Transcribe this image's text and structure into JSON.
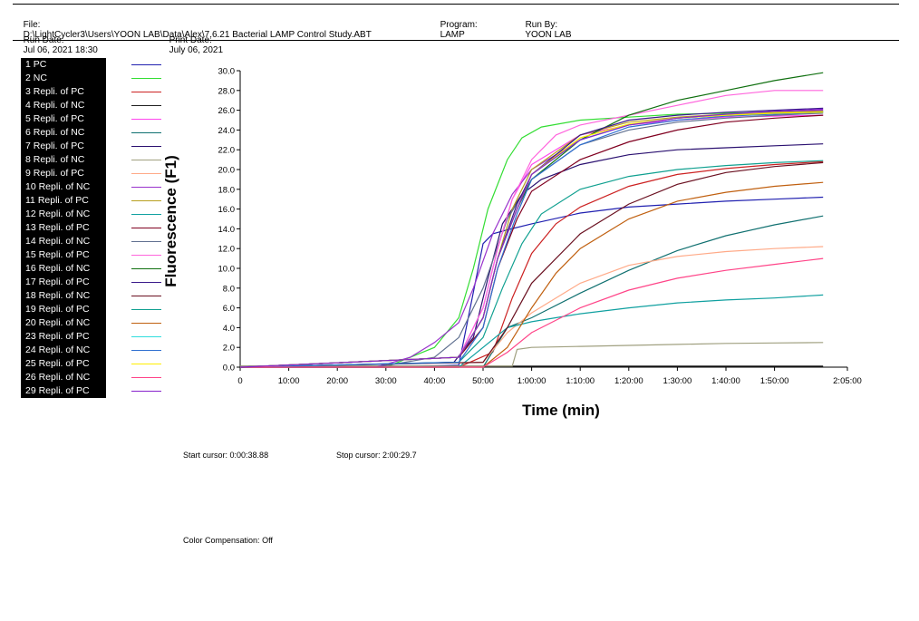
{
  "header": {
    "file_label": "File:",
    "file_path": "D:\\LightCycler3\\Users\\YOON LAB\\Data\\Alex\\7.6.21 Bacterial LAMP Control Study.ABT",
    "program_label": "Program:",
    "program": "LAMP",
    "run_by_label": "Run By:",
    "run_by": "YOON LAB",
    "run_date_label": "Run Date:",
    "run_date": "Jul 06, 2021 18:30",
    "print_date_label": "Print Date:",
    "print_date": "July 06, 2021"
  },
  "footer": {
    "start_cursor_label": "Start cursor:",
    "start_cursor": "0:00:38.88",
    "stop_cursor_label": "Stop cursor:",
    "stop_cursor": "2:00:29.7",
    "color_comp_label": "Color Compensation:",
    "color_comp": "Off"
  },
  "chart_data": {
    "type": "line",
    "xlabel": "Time (min)",
    "ylabel": "Fluorescence (F1)",
    "xlim": [
      0,
      125
    ],
    "ylim": [
      0,
      30
    ],
    "x_ticks": [
      0,
      10,
      20,
      30,
      40,
      50,
      60,
      70,
      80,
      90,
      100,
      110,
      125
    ],
    "x_tick_labels": [
      "0",
      "10:00",
      "20:00",
      "30:00",
      "40:00",
      "50:00",
      "1:00:00",
      "1:10:00",
      "1:20:00",
      "1:30:00",
      "1:40:00",
      "1:50:00",
      "2:05:00"
    ],
    "y_ticks": [
      0,
      2,
      4,
      6,
      8,
      10,
      12,
      14,
      16,
      18,
      20,
      22,
      24,
      26,
      28,
      30
    ],
    "y_tick_labels": [
      "0.0",
      "2.0",
      "4.0",
      "6.0",
      "8.0",
      "10.0",
      "12.0",
      "14.0",
      "16.0",
      "18.0",
      "20.0",
      "22.0",
      "24.0",
      "26.0",
      "28.0",
      "30.0"
    ],
    "grid": false,
    "legend_position": "left",
    "series": [
      {
        "name": "1 PC",
        "color": "#2020b0",
        "x": [
          0,
          30,
          45,
          50,
          52,
          55,
          60,
          70,
          80,
          90,
          100,
          110,
          120
        ],
        "y": [
          0,
          0,
          0.2,
          12.5,
          13.5,
          13.9,
          14.5,
          15.6,
          16.2,
          16.5,
          16.8,
          17.0,
          17.2
        ]
      },
      {
        "name": "2 NC",
        "color": "#33dd33",
        "x": [
          0,
          30,
          40,
          45,
          48,
          51,
          55,
          58,
          62,
          70,
          80,
          90,
          100,
          110,
          120
        ],
        "y": [
          0,
          0,
          2.0,
          5.0,
          10.0,
          16.0,
          21.0,
          23.2,
          24.3,
          25.0,
          25.3,
          25.6,
          25.7,
          25.8,
          25.9
        ]
      },
      {
        "name": "3 Repli. of PC",
        "color": "#cc2222",
        "x": [
          0,
          45,
          52,
          56,
          60,
          65,
          70,
          80,
          90,
          100,
          110,
          120
        ],
        "y": [
          0,
          0,
          1.5,
          7.0,
          11.5,
          14.5,
          16.2,
          18.3,
          19.5,
          20.1,
          20.5,
          20.8
        ]
      },
      {
        "name": "4 Repli. of NC",
        "color": "#202020",
        "x": [
          0,
          120
        ],
        "y": [
          0.1,
          0.1
        ]
      },
      {
        "name": "5 Repli. of PC",
        "color": "#ff44ee",
        "x": [
          0,
          45,
          50,
          53,
          56,
          60,
          70,
          80,
          90,
          100,
          110,
          120
        ],
        "y": [
          0,
          1,
          6,
          12,
          17,
          20.5,
          23.5,
          24.5,
          25.0,
          25.3,
          25.4,
          25.5
        ]
      },
      {
        "name": "6 Repli. of NC",
        "color": "#107070",
        "x": [
          0,
          50,
          55,
          60,
          70,
          80,
          90,
          100,
          110,
          120
        ],
        "y": [
          0,
          0,
          4.0,
          5.0,
          7.5,
          9.8,
          11.8,
          13.3,
          14.4,
          15.3
        ]
      },
      {
        "name": "7 Repli. of PC",
        "color": "#2a1070",
        "x": [
          0,
          44,
          48,
          51,
          54,
          58,
          62,
          70,
          80,
          90,
          100,
          110,
          120
        ],
        "y": [
          0,
          0.5,
          3,
          9,
          14.5,
          17.5,
          19.0,
          20.5,
          21.5,
          22.0,
          22.2,
          22.4,
          22.6
        ]
      },
      {
        "name": "8 Repli. of NC",
        "color": "#a0a080",
        "x": [
          0,
          56,
          57,
          60,
          70,
          80,
          90,
          100,
          110,
          120
        ],
        "y": [
          0.1,
          0.1,
          1.8,
          2.0,
          2.1,
          2.2,
          2.3,
          2.4,
          2.45,
          2.5
        ]
      },
      {
        "name": "9 Repli. of PC",
        "color": "#ffaa88",
        "x": [
          0,
          50,
          55,
          60,
          70,
          80,
          90,
          100,
          110,
          120
        ],
        "y": [
          0,
          0.5,
          3.5,
          5.5,
          8.5,
          10.3,
          11.2,
          11.7,
          12.0,
          12.2
        ]
      },
      {
        "name": "10 Repli. of NC",
        "color": "#9933cc",
        "x": [
          0,
          28,
          35,
          40,
          45,
          48,
          52,
          56,
          60,
          70,
          80,
          90,
          100,
          110,
          120
        ],
        "y": [
          0,
          0,
          1.0,
          2.5,
          4.5,
          8.0,
          13.5,
          17.5,
          20.0,
          23.0,
          24.5,
          25.2,
          25.5,
          25.8,
          26.0
        ]
      },
      {
        "name": "11 Repli. of PC",
        "color": "#b8a020",
        "x": [
          0,
          45,
          50,
          53,
          56,
          60,
          70,
          80,
          90,
          100,
          110,
          120
        ],
        "y": [
          0,
          1,
          5,
          11,
          16,
          20,
          23.5,
          24.8,
          25.3,
          25.6,
          25.8,
          25.9
        ]
      },
      {
        "name": "12 Repli. of NC",
        "color": "#10a0a0",
        "x": [
          0,
          45,
          55,
          60,
          70,
          80,
          90,
          100,
          110,
          120
        ],
        "y": [
          0,
          0,
          4.0,
          4.6,
          5.4,
          6.0,
          6.5,
          6.8,
          7.0,
          7.3
        ]
      },
      {
        "name": "13 Repli. of PC",
        "color": "#800020",
        "x": [
          0,
          45,
          50,
          53,
          57,
          60,
          70,
          80,
          90,
          100,
          110,
          120
        ],
        "y": [
          0,
          1,
          4,
          10,
          15,
          17.8,
          21.0,
          22.8,
          24.0,
          24.8,
          25.2,
          25.5
        ]
      },
      {
        "name": "14 Repli. of NC",
        "color": "#607090",
        "x": [
          0,
          28,
          40,
          45,
          50,
          55,
          60,
          70,
          80,
          90,
          100,
          110,
          120
        ],
        "y": [
          0,
          0,
          1,
          3,
          8,
          15,
          19,
          22.5,
          24,
          24.8,
          25.2,
          25.5,
          25.7
        ]
      },
      {
        "name": "15 Repli. of PC",
        "color": "#ff66dd",
        "x": [
          0,
          45,
          50,
          53,
          56,
          60,
          65,
          70,
          80,
          90,
          100,
          110,
          120
        ],
        "y": [
          0,
          1,
          6,
          12,
          17,
          21,
          23.5,
          24.5,
          25.5,
          26.5,
          27.5,
          28.0,
          28.0
        ]
      },
      {
        "name": "16 Repli. of NC",
        "color": "#107010",
        "x": [
          0,
          45,
          50,
          53,
          57,
          60,
          70,
          80,
          90,
          100,
          110,
          120
        ],
        "y": [
          0,
          1,
          5,
          11,
          16,
          19,
          23,
          25.5,
          27.0,
          28.0,
          29.0,
          29.8
        ]
      },
      {
        "name": "17 Repli. of PC",
        "color": "#3a1a8a",
        "x": [
          0,
          45,
          50,
          53,
          57,
          60,
          70,
          80,
          90,
          100,
          110,
          120
        ],
        "y": [
          0,
          1,
          5,
          11,
          16.5,
          19.5,
          23.5,
          25.0,
          25.5,
          25.8,
          26.0,
          26.2
        ]
      },
      {
        "name": "18 Repli. of NC",
        "color": "#6a1020",
        "x": [
          0,
          50,
          55,
          60,
          70,
          80,
          90,
          100,
          110,
          120
        ],
        "y": [
          0,
          0.5,
          4,
          8.5,
          13.5,
          16.5,
          18.5,
          19.7,
          20.3,
          20.7
        ]
      },
      {
        "name": "19 Repli. of PC",
        "color": "#10a090",
        "x": [
          0,
          45,
          50,
          54,
          58,
          62,
          70,
          80,
          90,
          100,
          110,
          120
        ],
        "y": [
          0,
          0.5,
          3,
          8,
          12.5,
          15.5,
          18,
          19.3,
          20.0,
          20.4,
          20.7,
          20.9
        ]
      },
      {
        "name": "20 Repli. of NC",
        "color": "#c06010",
        "x": [
          0,
          50,
          55,
          60,
          65,
          70,
          80,
          90,
          100,
          110,
          120
        ],
        "y": [
          0,
          0,
          2,
          6,
          9.5,
          12,
          15,
          16.8,
          17.7,
          18.3,
          18.7
        ]
      },
      {
        "name": "23 Repli. of PC",
        "color": "#30dddd",
        "x": [
          0,
          45,
          50,
          53,
          57,
          60,
          70,
          80,
          90,
          100,
          110,
          120
        ],
        "y": [
          0,
          1,
          5,
          11,
          16,
          19.5,
          23,
          24.5,
          25.2,
          25.5,
          25.7,
          25.8
        ]
      },
      {
        "name": "24 Repli. of NC",
        "color": "#3070d0",
        "x": [
          0,
          45,
          50,
          53,
          57,
          60,
          70,
          80,
          90,
          100,
          110,
          120
        ],
        "y": [
          0,
          0.5,
          4,
          10,
          15.5,
          19,
          22.5,
          24.3,
          25.0,
          25.4,
          25.6,
          25.8
        ]
      },
      {
        "name": "25 Repli. of PC",
        "color": "#ffee00",
        "x": [
          0,
          45,
          50,
          53,
          57,
          60,
          70,
          80,
          90,
          100,
          110,
          120
        ],
        "y": [
          0,
          1,
          5,
          11,
          16,
          19.5,
          23.2,
          24.6,
          25.2,
          25.5,
          25.7,
          25.8
        ]
      },
      {
        "name": "26 Repli. of NC",
        "color": "#ff4488",
        "x": [
          0,
          50,
          55,
          60,
          70,
          80,
          90,
          100,
          110,
          120
        ],
        "y": [
          0,
          0,
          1.5,
          3.5,
          6.0,
          7.8,
          9.0,
          9.8,
          10.4,
          11.0
        ]
      },
      {
        "name": "29 Repli. of PC",
        "color": "#8822cc",
        "x": [
          0,
          45,
          50,
          53,
          57,
          60,
          70,
          80,
          90,
          100,
          110,
          120
        ],
        "y": [
          0,
          1,
          5,
          11,
          16,
          19.5,
          23,
          24.5,
          25.2,
          25.6,
          25.9,
          26.1
        ]
      }
    ]
  }
}
